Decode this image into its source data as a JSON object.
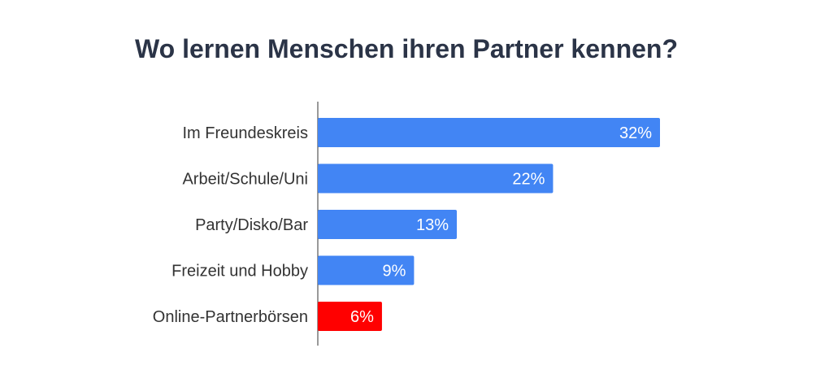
{
  "chart_data": {
    "type": "bar",
    "orientation": "horizontal",
    "title": "Wo lernen Menschen ihren Partner kennen?",
    "categories": [
      "Im Freundeskreis",
      "Arbeit/Schule/Uni",
      "Party/Disko/Bar",
      "Freizeit und Hobby",
      "Online-Partnerbörsen"
    ],
    "values": [
      32,
      22,
      13,
      9,
      6
    ],
    "value_labels": [
      "32%",
      "22%",
      "13%",
      "9%",
      "6%"
    ],
    "unit": "%",
    "xlim": [
      0,
      32
    ],
    "colors": [
      "#4285f4",
      "#4285f4",
      "#4285f4",
      "#4285f4",
      "#ff0000"
    ],
    "grid": false,
    "legend": "none"
  }
}
